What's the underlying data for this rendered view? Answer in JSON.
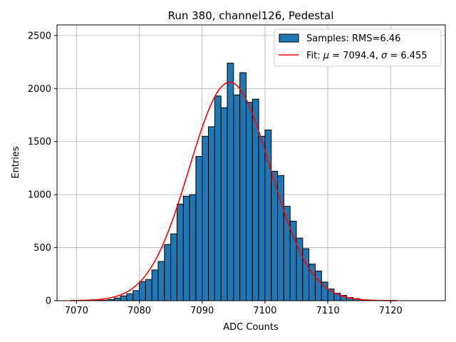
{
  "chart_data": {
    "type": "bar",
    "title": "Run 380, channel126, Pedestal",
    "xlabel": "ADC Counts",
    "ylabel": "Entries",
    "xlim": [
      7066.9,
      7128.7
    ],
    "ylim": [
      0,
      2600
    ],
    "xticks": [
      7070,
      7080,
      7090,
      7100,
      7110,
      7120
    ],
    "yticks": [
      0,
      500,
      1000,
      1500,
      2000,
      2500
    ],
    "grid": true,
    "legend_position": "top-right",
    "colors": {
      "bar_fill": "#1f77b4",
      "bar_edge": "#000000",
      "fit_line": "#ff0000",
      "grid": "#b0b0b0"
    },
    "histogram": {
      "name": "Samples: RMS=6.46",
      "bin_width": 1,
      "bin_starts": [
        7070,
        7071,
        7072,
        7073,
        7074,
        7075,
        7076,
        7077,
        7078,
        7079,
        7080,
        7081,
        7082,
        7083,
        7084,
        7085,
        7086,
        7087,
        7088,
        7089,
        7090,
        7091,
        7092,
        7093,
        7094,
        7095,
        7096,
        7097,
        7098,
        7099,
        7100,
        7101,
        7102,
        7103,
        7104,
        7105,
        7106,
        7107,
        7108,
        7109,
        7110,
        7111,
        7112,
        7113,
        7114,
        7115,
        7116,
        7117,
        7118,
        7119,
        7120,
        7121,
        7122,
        7123,
        7124,
        7125
      ],
      "values": [
        1,
        1,
        2,
        3,
        5,
        10,
        25,
        45,
        65,
        95,
        180,
        200,
        290,
        370,
        530,
        630,
        910,
        985,
        1000,
        1360,
        1550,
        1640,
        1930,
        1820,
        2240,
        1940,
        2150,
        1870,
        1900,
        1550,
        1610,
        1220,
        1180,
        890,
        750,
        590,
        490,
        345,
        280,
        175,
        110,
        70,
        50,
        30,
        20,
        10,
        6,
        3,
        2,
        1,
        1,
        0,
        0,
        0,
        0,
        0
      ]
    },
    "fit": {
      "name": "Fit: μ = 7094.4, σ = 6.455",
      "legend_label_prefix": "Fit: ",
      "mu_symbol": "μ",
      "sigma_symbol": "σ",
      "mu_text": " = 7094.4, ",
      "sigma_text": " = 6.455",
      "mu": 7094.4,
      "sigma": 6.455,
      "amplitude": 2060,
      "x_range": [
        7069,
        7121
      ]
    }
  }
}
